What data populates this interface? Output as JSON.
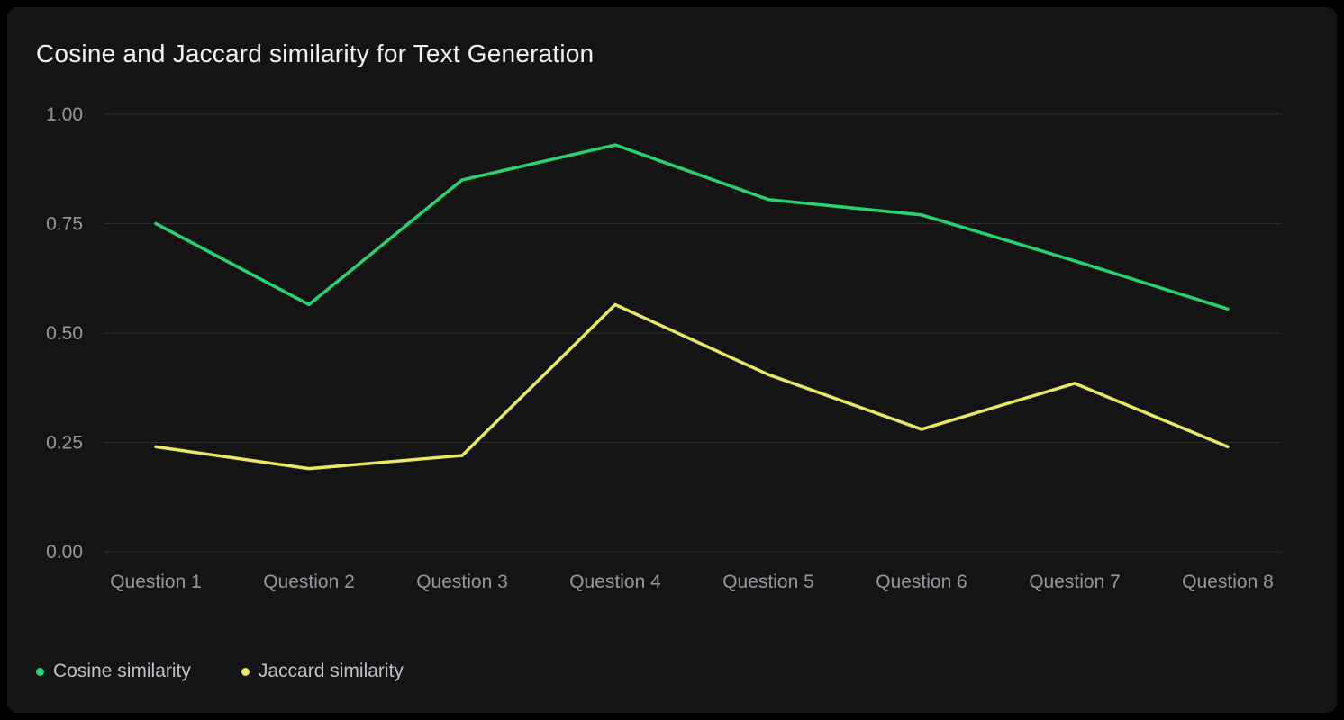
{
  "chart_data": {
    "type": "line",
    "title": "Cosine and Jaccard similarity for Text Generation",
    "categories": [
      "Question 1",
      "Question 2",
      "Question 3",
      "Question 4",
      "Question 5",
      "Question 6",
      "Question 7",
      "Question 8"
    ],
    "series": [
      {
        "name": "Cosine similarity",
        "color": "#26d56f",
        "values": [
          0.75,
          0.565,
          0.85,
          0.93,
          0.805,
          0.77,
          0.665,
          0.555
        ]
      },
      {
        "name": "Jaccard similarity",
        "color": "#ebe75f",
        "values": [
          0.24,
          0.19,
          0.22,
          0.565,
          0.405,
          0.28,
          0.385,
          0.24
        ]
      }
    ],
    "xlabel": "",
    "ylabel": "",
    "ylim": [
      0,
      1
    ],
    "yticks": [
      0,
      0.25,
      0.5,
      0.75,
      1
    ],
    "ytick_labels": [
      "0.00",
      "0.25",
      "0.50",
      "0.75",
      "1.00"
    ],
    "grid": true,
    "legend_position": "bottom-left"
  }
}
